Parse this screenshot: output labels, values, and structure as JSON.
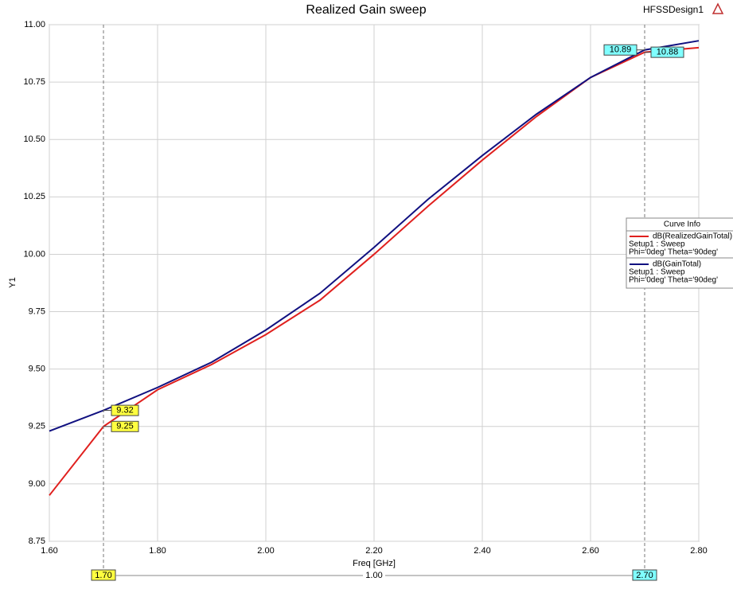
{
  "chart_data": {
    "type": "line",
    "title": "Realized Gain sweep",
    "design": "HFSSDesign1",
    "x_label": "Freq [GHz]",
    "y_label": "Y1",
    "x": [
      1.6,
      1.7,
      1.8,
      1.9,
      2.0,
      2.1,
      2.2,
      2.3,
      2.4,
      2.5,
      2.6,
      2.7,
      2.8
    ],
    "series": [
      {
        "name": "dB(RealizedGainTotal)",
        "setup": "Setup1 : Sweep",
        "variables": "Phi='0deg' Theta='90deg'",
        "color": "#e0201e",
        "values": [
          8.95,
          9.25,
          9.41,
          9.52,
          9.65,
          9.8,
          10.0,
          10.21,
          10.41,
          10.6,
          10.77,
          10.88,
          10.9
        ]
      },
      {
        "name": "dB(GainTotal)",
        "setup": "Setup1 : Sweep",
        "variables": "Phi='0deg' Theta='90deg'",
        "color": "#101080",
        "values": [
          9.23,
          9.32,
          9.42,
          9.53,
          9.67,
          9.83,
          10.03,
          10.24,
          10.43,
          10.61,
          10.77,
          10.89,
          10.93
        ]
      }
    ],
    "legend_title": "Curve Info",
    "xlim": [
      1.6,
      2.8
    ],
    "xticks": [
      {
        "value": 1.6,
        "label": "1.60"
      },
      {
        "value": 1.8,
        "label": "1.80"
      },
      {
        "value": 2.0,
        "label": "2.00"
      },
      {
        "value": 2.2,
        "label": "2.20"
      },
      {
        "value": 2.4,
        "label": "2.40"
      },
      {
        "value": 2.6,
        "label": "2.60"
      },
      {
        "value": 2.8,
        "label": "2.80"
      }
    ],
    "ylim": [
      8.75,
      11.0
    ],
    "yticks": [
      {
        "value": 8.75,
        "label": "8.75"
      },
      {
        "value": 9.0,
        "label": "9.00"
      },
      {
        "value": 9.25,
        "label": "9.25"
      },
      {
        "value": 9.5,
        "label": "9.50"
      },
      {
        "value": 9.75,
        "label": "9.75"
      },
      {
        "value": 10.0,
        "label": "10.00"
      },
      {
        "value": 10.25,
        "label": "10.25"
      },
      {
        "value": 10.5,
        "label": "10.50"
      },
      {
        "value": 10.75,
        "label": "10.75"
      },
      {
        "value": 11.0,
        "label": "11.00"
      }
    ],
    "grid": true,
    "markers": [
      {
        "x": {
          "value": 1.7,
          "label": "1.70"
        },
        "color": "#ffff40",
        "values": [
          9.32,
          9.25
        ]
      },
      {
        "x": {
          "value": 2.7,
          "label": "2.70"
        },
        "color": "#80ffff",
        "values": [
          10.89,
          10.88
        ]
      }
    ],
    "delta": {
      "value": 1,
      "label": "1.00"
    }
  }
}
